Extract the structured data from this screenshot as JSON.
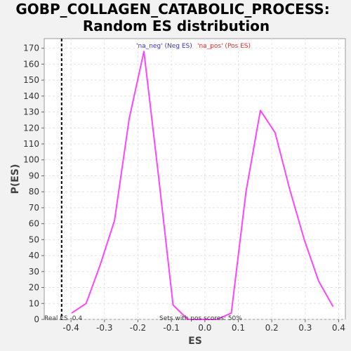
{
  "chart_data": {
    "type": "line",
    "title": "GOBP_COLLAGEN_CATABOLIC_PROCESS:",
    "subtitle": "Random ES distribution",
    "xlabel": "ES",
    "ylabel": "P(ES)",
    "xlim": [
      -0.48,
      0.42
    ],
    "ylim": [
      0,
      176
    ],
    "x_ticks": [
      "-0.4",
      "-0.3",
      "-0.2",
      "-0.1",
      "0.0",
      "0.1",
      "0.2",
      "0.3",
      "0.4"
    ],
    "y_ticks": [
      "0",
      "10",
      "20",
      "30",
      "40",
      "50",
      "60",
      "70",
      "80",
      "90",
      "100",
      "110",
      "120",
      "130",
      "140",
      "150",
      "160",
      "170"
    ],
    "grid": true,
    "series": [
      {
        "color": "#ff44ff",
        "x": [
          -0.398,
          -0.355,
          -0.313,
          -0.27,
          -0.226,
          -0.182,
          -0.139,
          -0.095,
          -0.051,
          -0.008,
          0.036,
          0.079,
          0.123,
          0.166,
          0.21,
          0.253,
          0.297,
          0.34,
          0.383
        ],
        "y": [
          4,
          10,
          34,
          62,
          126,
          168,
          91,
          9,
          0,
          0,
          0,
          4,
          80,
          131,
          117,
          82,
          50,
          24,
          8
        ]
      }
    ],
    "reference_line": {
      "x": -0.428,
      "label": "Real ES -0.4"
    },
    "annotation": "Sets with pos scores: 50%",
    "legend": [
      {
        "label": "'na_neg' (Neg ES)",
        "color": "#3333cc"
      },
      {
        "label": "'na_pos' (Pos ES)",
        "color": "#ee2222"
      }
    ]
  }
}
